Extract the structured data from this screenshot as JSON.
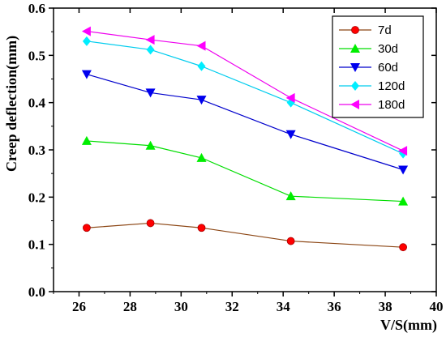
{
  "chart_data": {
    "type": "line",
    "xlabel": "V/S(mm)",
    "ylabel": "Creep deflection(mm)",
    "xlim": [
      25,
      40
    ],
    "ylim": [
      0.0,
      0.6
    ],
    "xticks": [
      26,
      28,
      30,
      32,
      34,
      36,
      38,
      40
    ],
    "yticks": [
      0.0,
      0.1,
      0.2,
      0.3,
      0.4,
      0.5,
      0.6
    ],
    "x": [
      26.3,
      28.8,
      30.8,
      34.3,
      38.7
    ],
    "legend_position": "top-right",
    "grid": false,
    "series": [
      {
        "name": "7d",
        "color": "#ff0000",
        "line_color": "#8b4513",
        "marker": "circle",
        "values": [
          0.135,
          0.145,
          0.135,
          0.107,
          0.094
        ]
      },
      {
        "name": "30d",
        "color": "#00ee00",
        "line_color": "#00dd00",
        "marker": "triangle-up",
        "values": [
          0.319,
          0.309,
          0.283,
          0.202,
          0.191
        ]
      },
      {
        "name": "60d",
        "color": "#0000ee",
        "line_color": "#0000cc",
        "marker": "triangle-down",
        "values": [
          0.46,
          0.421,
          0.406,
          0.333,
          0.258
        ]
      },
      {
        "name": "120d",
        "color": "#00eeff",
        "line_color": "#00ccee",
        "marker": "diamond",
        "values": [
          0.53,
          0.512,
          0.477,
          0.4,
          0.292
        ]
      },
      {
        "name": "180d",
        "color": "#ff00ff",
        "line_color": "#ee00ee",
        "marker": "triangle-left",
        "values": [
          0.551,
          0.533,
          0.52,
          0.41,
          0.298
        ]
      }
    ]
  }
}
